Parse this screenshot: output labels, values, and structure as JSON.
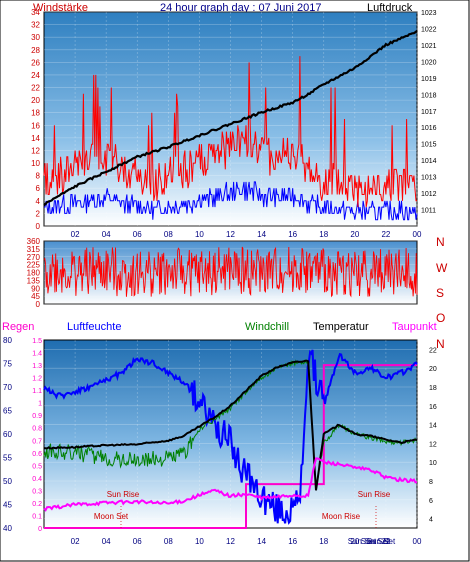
{
  "header": {
    "left": "Windstärke",
    "center": "24 hour graph day : 07 Juni 2017",
    "right": "Luftdruck"
  },
  "colors": {
    "wind": "#ff0000",
    "wind_band": "#0000ff",
    "pressure": "#000000",
    "rain": "#ff00cc",
    "humidity": "#0000ff",
    "windchill": "#008000",
    "temperature": "#000000",
    "dewpoint": "#ff00ff",
    "axis_left": "#cc0000",
    "axis_humidity": "#000080"
  },
  "chart_data": [
    {
      "type": "line",
      "id": "wind-pressure",
      "x_ticks": [
        "02",
        "04",
        "06",
        "08",
        "10",
        "12",
        "14",
        "16",
        "18",
        "20",
        "22",
        "00"
      ],
      "left_axis": {
        "label": "Windstärke",
        "range": [
          0,
          34
        ],
        "ticks": [
          0,
          2,
          4,
          6,
          8,
          10,
          12,
          14,
          16,
          18,
          20,
          22,
          24,
          26,
          28,
          30,
          32,
          34
        ]
      },
      "right_axis": {
        "label": "Luftdruck",
        "range": [
          1010,
          1023
        ],
        "ticks": [
          1011,
          1012,
          1013,
          1014,
          1015,
          1016,
          1017,
          1018,
          1019,
          1020,
          1021,
          1022,
          1023
        ]
      },
      "series": [
        {
          "name": "Windstärke",
          "x": [
            0,
            1,
            2,
            3,
            4,
            5,
            6,
            7,
            8,
            9,
            10,
            11,
            12,
            13,
            14,
            15,
            16,
            17,
            18,
            19,
            20,
            21,
            22,
            23,
            24
          ],
          "values": [
            6,
            7,
            8,
            9,
            10,
            8,
            7,
            6,
            7,
            8,
            9,
            10,
            12,
            13,
            11,
            10,
            11,
            8,
            6,
            6,
            5,
            5,
            5,
            6,
            4
          ]
        },
        {
          "name": "Luftdruck",
          "x": [
            0,
            2,
            4,
            6,
            8,
            10,
            12,
            14,
            16,
            17,
            18,
            20,
            22,
            24
          ],
          "values": [
            1011.3,
            1012.4,
            1013.3,
            1014.2,
            1014.8,
            1015.5,
            1016.2,
            1016.9,
            1017.5,
            1018.0,
            1018.6,
            1019.6,
            1021.0,
            1021.8
          ]
        }
      ]
    },
    {
      "type": "line",
      "id": "wind-direction",
      "x_ticks": [],
      "left_axis": {
        "label": "",
        "range": [
          0,
          360
        ],
        "ticks": [
          0,
          45,
          90,
          135,
          180,
          225,
          270,
          315,
          360
        ]
      },
      "right_axis": {
        "label": "",
        "ticks": [
          "N",
          "W",
          "S",
          "O",
          "N"
        ]
      },
      "series": [
        {
          "name": "Windrichtung",
          "x": [
            0,
            2,
            4,
            6,
            8,
            10,
            12,
            14,
            16,
            18,
            20,
            22,
            24
          ],
          "values": [
            200,
            180,
            190,
            170,
            185,
            175,
            190,
            180,
            195,
            185,
            175,
            190,
            180
          ]
        }
      ]
    },
    {
      "type": "line",
      "id": "climate",
      "x_ticks": [
        "02",
        "04",
        "06",
        "08",
        "10",
        "12",
        "14",
        "16",
        "18",
        "20",
        "22",
        "00"
      ],
      "legend": [
        "Regen",
        "Luftfeuchte",
        "Windchill",
        "Temperatur",
        "Taupunkt"
      ],
      "rain_axis": {
        "label": "Regen",
        "range": [
          0,
          1.5
        ],
        "ticks": [
          0,
          0.1,
          0.2,
          0.3,
          0.4,
          0.5,
          0.6,
          0.7,
          0.8,
          0.9,
          1,
          1.1,
          1.2,
          1.3,
          1.4,
          1.5
        ]
      },
      "humidity_axis": {
        "label": "Luftfeuchte",
        "range": [
          40,
          80
        ],
        "ticks": [
          40,
          45,
          50,
          55,
          60,
          65,
          70,
          75,
          80
        ]
      },
      "temp_axis": {
        "label": "Temperatur",
        "range": [
          3,
          23
        ],
        "ticks": [
          4,
          6,
          8,
          10,
          12,
          14,
          16,
          18,
          20,
          22
        ]
      },
      "series": [
        {
          "name": "Regen",
          "x": [
            0,
            13,
            13,
            18,
            18,
            24
          ],
          "values": [
            0,
            0,
            0.35,
            0.35,
            1.3,
            1.3
          ]
        },
        {
          "name": "Luftfeuchte",
          "x": [
            0,
            1,
            3,
            5,
            6,
            7,
            8,
            9,
            10,
            11,
            12,
            13,
            14,
            15,
            16,
            16.5,
            17,
            18,
            19,
            20,
            21,
            22,
            23,
            24
          ],
          "values": [
            70,
            68,
            70,
            73,
            76,
            75,
            73,
            71,
            67,
            62,
            58,
            51,
            47,
            44,
            43,
            47,
            78,
            66,
            77,
            73,
            74,
            72,
            73,
            75
          ]
        },
        {
          "name": "Windchill",
          "x": [
            0,
            2,
            4,
            6,
            8,
            9,
            10,
            11,
            12,
            13,
            14,
            15,
            16,
            17,
            17.5,
            18,
            19,
            20,
            21,
            22,
            23,
            24
          ],
          "values": [
            11.2,
            11.0,
            10.4,
            10.2,
            10.5,
            11.0,
            13.5,
            14.5,
            15.8,
            17.5,
            19.0,
            20.0,
            20.5,
            20.8,
            7,
            12,
            14,
            13,
            12.6,
            12.2,
            12.1,
            12.4
          ]
        },
        {
          "name": "Temperatur",
          "x": [
            0,
            2,
            4,
            6,
            8,
            9,
            10,
            11,
            12,
            13,
            14,
            15,
            16,
            17,
            17.5,
            18,
            19,
            20,
            21,
            22,
            23,
            24
          ],
          "values": [
            11.5,
            11.6,
            11.8,
            11.9,
            12.3,
            12.8,
            13.8,
            14.8,
            16.0,
            17.6,
            19.2,
            20.1,
            20.6,
            20.8,
            7,
            13,
            14,
            13,
            12.8,
            12.4,
            12.1,
            12.4
          ]
        },
        {
          "name": "Taupunkt",
          "x": [
            0,
            2,
            4,
            6,
            8,
            9,
            10,
            11,
            12,
            13,
            14,
            15,
            16,
            17,
            17.5,
            18,
            19,
            20,
            21,
            22,
            23,
            24
          ],
          "values": [
            5.0,
            5.5,
            5.7,
            5.8,
            5.6,
            5.9,
            6.5,
            7.0,
            6.4,
            6.6,
            6.2,
            6.3,
            6.5,
            6.4,
            10.5,
            10.0,
            9.8,
            9.4,
            9.2,
            8.4,
            8.1,
            8.0
          ]
        }
      ],
      "annotations": [
        "Sun Rise",
        "Moon Set",
        "Sun Rise",
        "Moon Rise",
        "Sun Set",
        "Sun Set",
        "Sun Set"
      ]
    }
  ]
}
